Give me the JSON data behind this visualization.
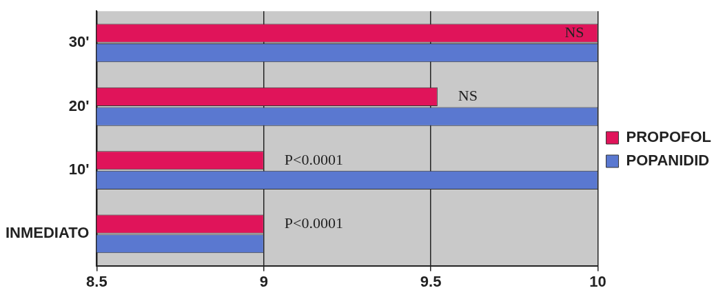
{
  "chart_data": {
    "type": "bar",
    "orientation": "horizontal",
    "categories": [
      "30'",
      "20'",
      "10'",
      "INMEDIATO"
    ],
    "series": [
      {
        "name": "PROPOFOL",
        "color": "#e0145a",
        "values": [
          10,
          9.52,
          9,
          9
        ]
      },
      {
        "name": "POPANIDID",
        "color": "#5a78d0",
        "values": [
          10,
          10,
          10,
          9
        ]
      }
    ],
    "xlim": [
      8.5,
      10
    ],
    "xticks": [
      8.5,
      9,
      9.5,
      10
    ],
    "grid": "x",
    "legend": "right",
    "annotations": [
      {
        "text": "NS",
        "x": 10,
        "y": "30'"
      },
      {
        "text": "NS",
        "x": 9.52,
        "y": "20'"
      },
      {
        "text": "P<0.0001",
        "x": 9,
        "y": "10'"
      },
      {
        "text": "P<0.0001",
        "x": 9,
        "y": "INMEDIATO"
      }
    ]
  }
}
